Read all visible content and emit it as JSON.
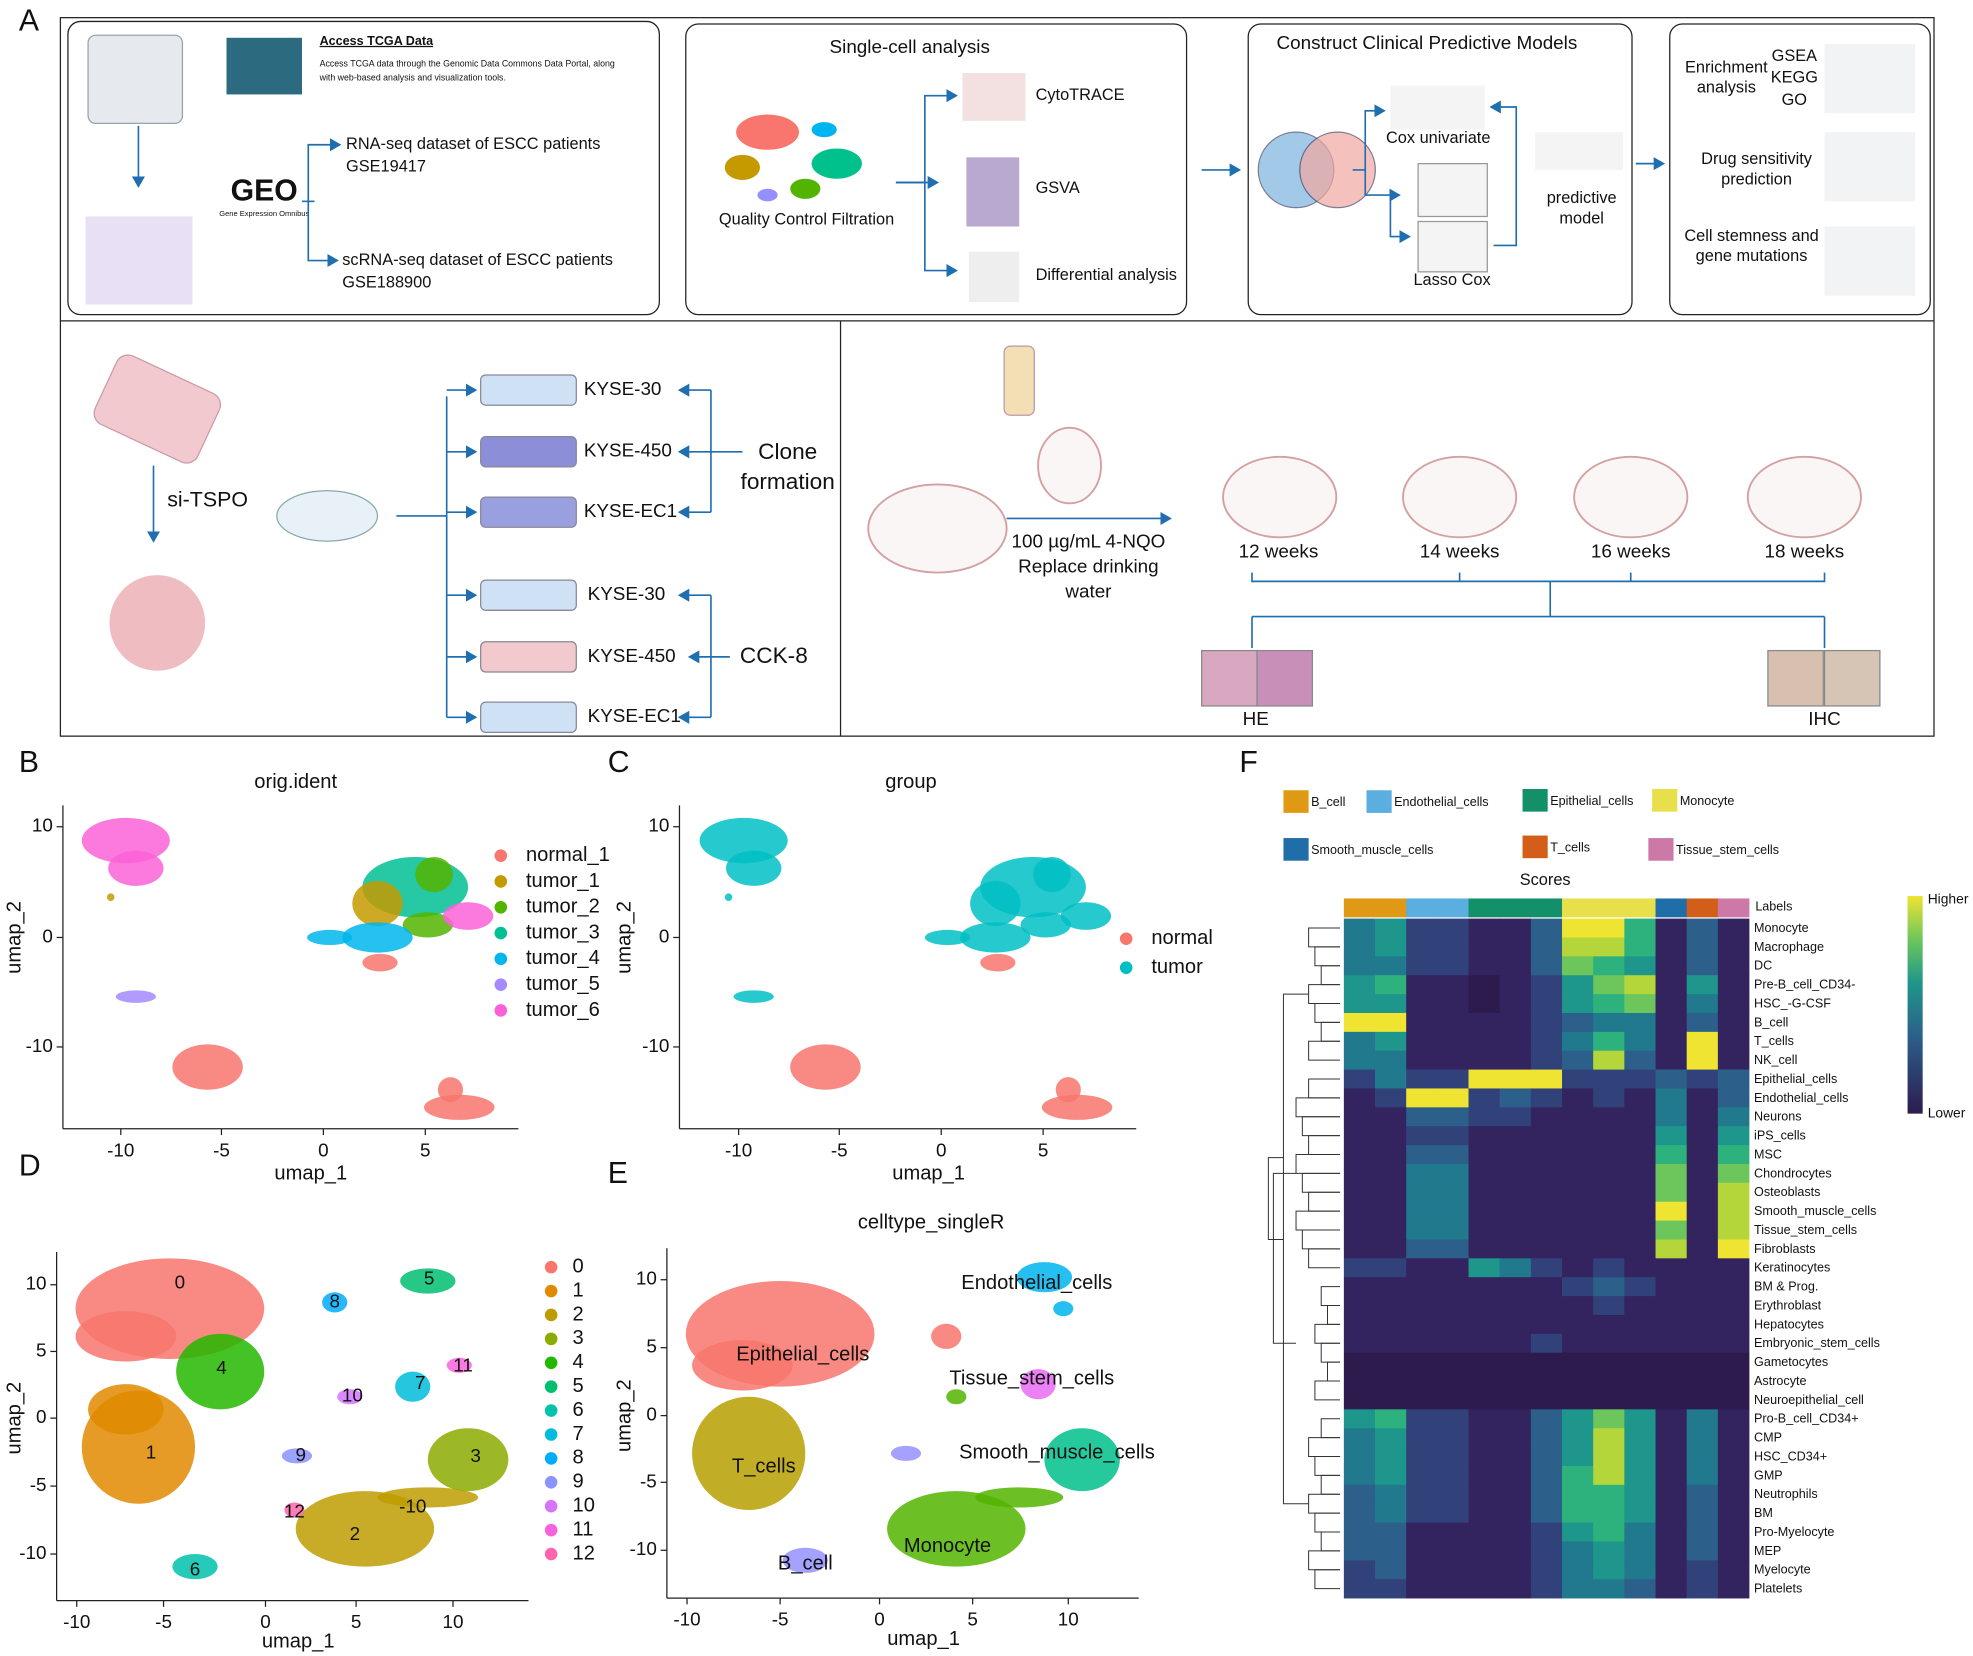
{
  "panel_labels": [
    "A",
    "B",
    "C",
    "D",
    "E",
    "F"
  ],
  "workflow": {
    "data_sources": {
      "tcga_title": "Access TCGA Data",
      "tcga_text": [
        "Access TCGA data through the Genomic Data Commons Data Portal, along",
        "with web-based analysis and visualization tools."
      ],
      "geo_logo": "GEO",
      "geo_name": "Gene Expression Omnibus",
      "bulk": [
        "RNA-seq dataset of ESCC patients",
        "GSE19417"
      ],
      "sc": [
        "scRNA-seq dataset of ESCC patients",
        "GSE188900"
      ]
    },
    "single_cell": {
      "title": "Single-cell analysis",
      "qc": "Quality Control Filtration",
      "steps": [
        "CytoTRACE",
        "GSVA",
        "Differential analysis"
      ]
    },
    "models": {
      "title": "Construct Clinical Predictive Models",
      "cox": "Cox univariate",
      "lasso": "Lasso Cox",
      "result": [
        "predictive",
        "model"
      ]
    },
    "downstream": {
      "enrichment": [
        "Enrichment",
        "analysis"
      ],
      "methods": [
        "GSEA",
        "KEGG",
        "GO"
      ],
      "drug": [
        "Drug sensitivity",
        "prediction"
      ],
      "stemness": [
        "Cell stemness and",
        "gene mutations"
      ]
    },
    "invitro": {
      "knockdown": "si-TSPO",
      "clone_lines": [
        "KYSE-30",
        "KYSE-450",
        "KYSE-EC1"
      ],
      "clone": [
        "Clone",
        "formation"
      ],
      "cck_lines": [
        "KYSE-30",
        "KYSE-450",
        "KYSE-EC1"
      ],
      "cck": "CCK-8"
    },
    "invivo": {
      "treatment": [
        "100 µg/mL 4-NQO",
        "Replace drinking",
        "water"
      ],
      "timepoints": [
        "12 weeks",
        "14 weeks",
        "16 weeks",
        "18 weeks"
      ],
      "stains": [
        "HE",
        "IHC"
      ]
    }
  },
  "umap_b": {
    "title": "orig.ident",
    "legend": [
      {
        "name": "normal_1",
        "color": "#F8766D"
      },
      {
        "name": "tumor_1",
        "color": "#C49A00"
      },
      {
        "name": "tumor_2",
        "color": "#53B400"
      },
      {
        "name": "tumor_3",
        "color": "#00C094"
      },
      {
        "name": "tumor_4",
        "color": "#00B6EB"
      },
      {
        "name": "tumor_5",
        "color": "#A58AFF"
      },
      {
        "name": "tumor_6",
        "color": "#FB61D7"
      }
    ],
    "xticks": [
      "-10",
      "-5",
      "0",
      "5"
    ],
    "yticks": [
      "10",
      "0",
      "-10"
    ],
    "xlabel": "umap_1",
    "ylabel": "umap_2"
  },
  "umap_c": {
    "title": "group",
    "legend": [
      {
        "name": "normal",
        "color": "#F8766D"
      },
      {
        "name": "tumor",
        "color": "#00BFC4"
      }
    ],
    "xticks": [
      "-10",
      "-5",
      "0",
      "5"
    ],
    "yticks": [
      "10",
      "0",
      "-10"
    ],
    "xlabel": "umap_1",
    "ylabel": "umap_2"
  },
  "umap_d": {
    "legend": [
      {
        "name": "0",
        "color": "#F8766D"
      },
      {
        "name": "1",
        "color": "#E18A00"
      },
      {
        "name": "2",
        "color": "#BE9C00"
      },
      {
        "name": "3",
        "color": "#8CAB00"
      },
      {
        "name": "4",
        "color": "#24B700"
      },
      {
        "name": "5",
        "color": "#00BE70"
      },
      {
        "name": "6",
        "color": "#00C1AB"
      },
      {
        "name": "7",
        "color": "#00BBDA"
      },
      {
        "name": "8",
        "color": "#00ACFC"
      },
      {
        "name": "9",
        "color": "#8B93FF"
      },
      {
        "name": "10",
        "color": "#D575FE"
      },
      {
        "name": "11",
        "color": "#F962DD"
      },
      {
        "name": "12",
        "color": "#FF65AC"
      }
    ],
    "annotation": "-10",
    "xticks": [
      "-10",
      "-5",
      "0",
      "5",
      "10"
    ],
    "yticks": [
      "10",
      "5",
      "0",
      "-5",
      "-10"
    ],
    "xlabel": "umap_1",
    "ylabel": "umap_2"
  },
  "umap_e": {
    "title": "celltype_singleR",
    "celltypes": [
      {
        "name": "Endothelial_cells",
        "color": "#00B4EF"
      },
      {
        "name": "Epithelial_cells",
        "color": "#F8766D"
      },
      {
        "name": "Tissue_stem_cells",
        "color": "#E76BF3"
      },
      {
        "name": "Smooth_muscle_cells",
        "color": "#00C08B"
      },
      {
        "name": "T_cells",
        "color": "#B79F00"
      },
      {
        "name": "Monocyte",
        "color": "#53B400"
      },
      {
        "name": "B_cell",
        "color": "#9590FF"
      }
    ],
    "xticks": [
      "-10",
      "-5",
      "0",
      "5",
      "10"
    ],
    "yticks": [
      "10",
      "5",
      "0",
      "-5",
      "-10"
    ],
    "xlabel": "umap_1",
    "ylabel": "umap_2"
  },
  "heatmap": {
    "legend": [
      {
        "name": "B_cell",
        "color": "#E09915"
      },
      {
        "name": "Endothelial_cells",
        "color": "#5AAEE0"
      },
      {
        "name": "Epithelial_cells",
        "color": "#13906A"
      },
      {
        "name": "Monocyte",
        "color": "#E8E04A"
      },
      {
        "name": "Smooth_muscle_cells",
        "color": "#1F6EA8"
      },
      {
        "name": "T_cells",
        "color": "#D35E1A"
      },
      {
        "name": "Tissue_stem_cells",
        "color": "#CC79A7"
      }
    ],
    "title": "Scores",
    "labels_title": "Labels",
    "scale": [
      "Higher",
      "Lower"
    ],
    "column_groups": [
      0,
      0,
      1,
      1,
      2,
      2,
      2,
      3,
      3,
      3,
      4,
      5,
      6
    ],
    "palette": [
      "#2d1b4e",
      "#33235f",
      "#31427a",
      "#2c5f8a",
      "#21798e",
      "#1f968b",
      "#2db27d",
      "#6cc65c",
      "#b5d63a",
      "#f0e432"
    ],
    "rows": [
      "Monocyte",
      "Macrophage",
      "DC",
      "Pre-B_cell_CD34-",
      "HSC_-G-CSF",
      "B_cell",
      "T_cells",
      "NK_cell",
      "Epithelial_cells",
      "Endothelial_cells",
      "Neurons",
      "iPS_cells",
      "MSC",
      "Chondrocytes",
      "Osteoblasts",
      "Smooth_muscle_cells",
      "Tissue_stem_cells",
      "Fibroblasts",
      "Keratinocytes",
      "BM & Prog.",
      "Erythroblast",
      "Hepatocytes",
      "Embryonic_stem_cells",
      "Gametocytes",
      "Astrocyte",
      "Neuroepithelial_cell",
      "Pro-B_cell_CD34+",
      "CMP",
      "HSC_CD34+",
      "GMP",
      "Neutrophils",
      "BM",
      "Pro-Myelocyte",
      "MEP",
      "Myelocyte",
      "Platelets"
    ],
    "cells": [
      [
        4,
        5,
        2,
        2,
        1,
        1,
        3,
        9,
        9,
        6,
        1,
        3,
        1
      ],
      [
        4,
        5,
        2,
        2,
        1,
        1,
        3,
        8,
        8,
        6,
        1,
        3,
        1
      ],
      [
        4,
        4,
        2,
        2,
        1,
        1,
        3,
        7,
        6,
        5,
        1,
        3,
        1
      ],
      [
        5,
        6,
        1,
        1,
        0,
        1,
        2,
        5,
        7,
        8,
        1,
        5,
        1
      ],
      [
        5,
        5,
        1,
        1,
        0,
        1,
        2,
        5,
        6,
        7,
        1,
        4,
        1
      ],
      [
        9,
        9,
        1,
        1,
        1,
        1,
        2,
        3,
        4,
        4,
        1,
        3,
        1
      ],
      [
        4,
        5,
        1,
        1,
        1,
        1,
        2,
        4,
        6,
        4,
        1,
        9,
        1
      ],
      [
        4,
        4,
        1,
        1,
        1,
        1,
        2,
        3,
        8,
        3,
        1,
        9,
        1
      ],
      [
        2,
        4,
        2,
        2,
        9,
        9,
        9,
        2,
        2,
        2,
        3,
        2,
        3
      ],
      [
        1,
        2,
        9,
        9,
        2,
        3,
        2,
        1,
        2,
        1,
        4,
        1,
        3
      ],
      [
        1,
        1,
        3,
        3,
        2,
        2,
        1,
        1,
        1,
        1,
        4,
        1,
        4
      ],
      [
        1,
        1,
        2,
        2,
        1,
        1,
        1,
        1,
        1,
        1,
        5,
        1,
        5
      ],
      [
        1,
        1,
        3,
        3,
        1,
        1,
        1,
        1,
        1,
        1,
        6,
        1,
        6
      ],
      [
        1,
        1,
        4,
        4,
        1,
        1,
        1,
        1,
        1,
        1,
        7,
        1,
        7
      ],
      [
        1,
        1,
        4,
        4,
        1,
        1,
        1,
        1,
        1,
        1,
        7,
        1,
        8
      ],
      [
        1,
        1,
        4,
        4,
        1,
        1,
        1,
        1,
        1,
        1,
        9,
        1,
        8
      ],
      [
        1,
        1,
        4,
        4,
        1,
        1,
        1,
        1,
        1,
        1,
        7,
        1,
        8
      ],
      [
        1,
        1,
        3,
        3,
        1,
        1,
        1,
        1,
        1,
        1,
        8,
        1,
        9
      ],
      [
        2,
        2,
        1,
        1,
        5,
        4,
        2,
        1,
        2,
        1,
        1,
        1,
        1
      ],
      [
        1,
        1,
        1,
        1,
        1,
        1,
        1,
        2,
        3,
        2,
        1,
        1,
        1
      ],
      [
        1,
        1,
        1,
        1,
        1,
        1,
        1,
        1,
        2,
        1,
        1,
        1,
        1
      ],
      [
        1,
        1,
        1,
        1,
        1,
        1,
        1,
        1,
        1,
        1,
        1,
        1,
        1
      ],
      [
        1,
        1,
        1,
        1,
        1,
        1,
        2,
        1,
        1,
        1,
        1,
        1,
        1
      ],
      [
        0,
        0,
        0,
        0,
        0,
        0,
        0,
        0,
        0,
        0,
        0,
        0,
        0
      ],
      [
        0,
        0,
        0,
        0,
        0,
        0,
        0,
        0,
        0,
        0,
        0,
        0,
        0
      ],
      [
        0,
        0,
        0,
        0,
        0,
        0,
        0,
        0,
        0,
        0,
        0,
        0,
        0
      ],
      [
        5,
        6,
        2,
        2,
        1,
        1,
        3,
        5,
        7,
        5,
        1,
        4,
        1
      ],
      [
        4,
        5,
        2,
        2,
        1,
        1,
        3,
        5,
        8,
        5,
        1,
        4,
        1
      ],
      [
        4,
        5,
        2,
        2,
        1,
        1,
        3,
        5,
        8,
        5,
        1,
        4,
        1
      ],
      [
        4,
        5,
        2,
        2,
        1,
        1,
        3,
        6,
        8,
        5,
        1,
        4,
        1
      ],
      [
        3,
        4,
        2,
        2,
        1,
        1,
        3,
        6,
        6,
        5,
        1,
        3,
        1
      ],
      [
        3,
        4,
        2,
        2,
        1,
        1,
        3,
        6,
        6,
        5,
        1,
        3,
        1
      ],
      [
        3,
        3,
        1,
        1,
        1,
        1,
        2,
        5,
        6,
        4,
        1,
        3,
        1
      ],
      [
        3,
        3,
        1,
        1,
        1,
        1,
        2,
        4,
        5,
        4,
        1,
        3,
        1
      ],
      [
        2,
        3,
        1,
        1,
        1,
        1,
        2,
        4,
        5,
        4,
        1,
        2,
        1
      ],
      [
        2,
        2,
        1,
        1,
        1,
        1,
        2,
        4,
        4,
        3,
        1,
        2,
        1
      ]
    ]
  }
}
